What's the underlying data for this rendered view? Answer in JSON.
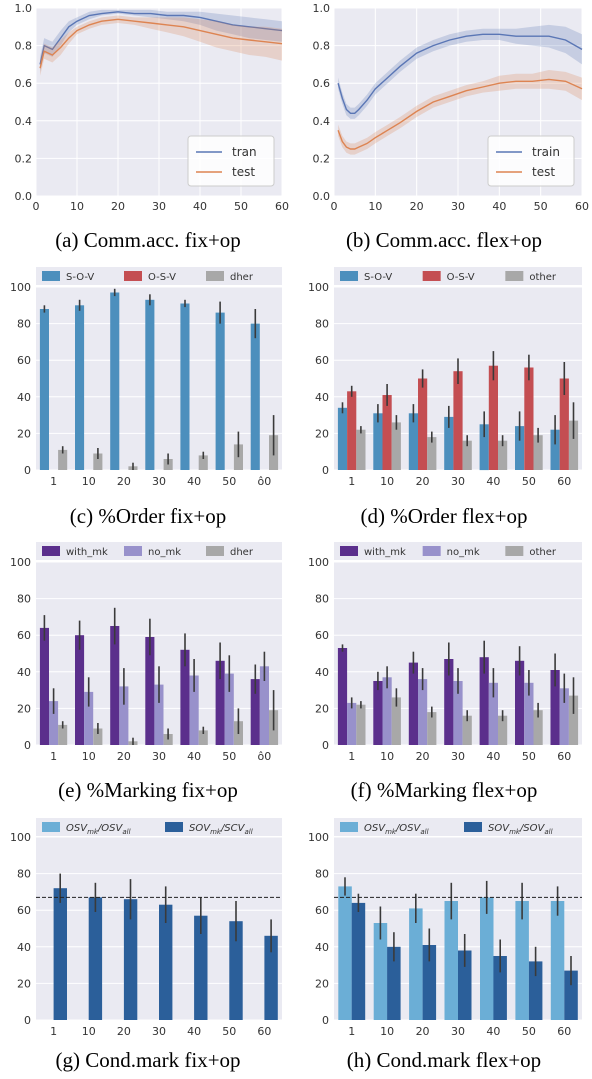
{
  "captions": {
    "a": "(a) Comm.acc. fix+op",
    "b": "(b) Comm.acc. flex+op",
    "c": "(c) %Order fix+op",
    "d": "(d) %Order flex+op",
    "e": "(e) %Marking fix+op",
    "f": "(f) %Marking flex+op",
    "g": "(g) Cond.mark fix+op",
    "h": "(h) Cond.mark flex+op"
  },
  "colors": {
    "panel_bg": "#eaeaf2",
    "train_line": "#5a76b5",
    "test_line": "#dd8452",
    "sov": "#4c8fbd",
    "osv": "#c44e52",
    "other": "#a8a8a8",
    "with_mk": "#5b2f8c",
    "no_mk": "#9891cb",
    "cond_osv": "#6baed6",
    "cond_sov": "#2b5f9a"
  },
  "chart_data": [
    {
      "id": "a",
      "type": "line",
      "xlim": [
        0,
        60
      ],
      "ylim": [
        0,
        1.0
      ],
      "xticks": [
        0,
        10,
        20,
        30,
        40,
        50,
        60
      ],
      "yticks": [
        0.0,
        0.2,
        0.4,
        0.6,
        0.8,
        1.0
      ],
      "ytick_labels": [
        "0.0",
        "0.2",
        "0.4",
        "0.6",
        "0.8",
        "1.0"
      ],
      "legend": "bottom-right",
      "x": [
        1,
        2,
        4,
        6,
        8,
        10,
        13,
        16,
        20,
        24,
        28,
        32,
        36,
        40,
        44,
        48,
        52,
        56,
        60
      ],
      "series": [
        {
          "name": "tran",
          "color_key": "train_line",
          "values": [
            0.7,
            0.8,
            0.78,
            0.84,
            0.9,
            0.93,
            0.96,
            0.97,
            0.98,
            0.97,
            0.97,
            0.96,
            0.96,
            0.95,
            0.93,
            0.91,
            0.9,
            0.89,
            0.88
          ],
          "lower": [
            0.66,
            0.76,
            0.74,
            0.8,
            0.87,
            0.91,
            0.94,
            0.96,
            0.97,
            0.96,
            0.95,
            0.94,
            0.93,
            0.91,
            0.88,
            0.86,
            0.84,
            0.83,
            0.82
          ],
          "upper": [
            0.74,
            0.84,
            0.82,
            0.88,
            0.93,
            0.95,
            0.98,
            0.99,
            0.99,
            0.99,
            0.99,
            0.98,
            0.98,
            0.98,
            0.97,
            0.96,
            0.95,
            0.94,
            0.93
          ]
        },
        {
          "name": "test",
          "color_key": "test_line",
          "values": [
            0.68,
            0.77,
            0.75,
            0.79,
            0.84,
            0.88,
            0.91,
            0.93,
            0.94,
            0.93,
            0.92,
            0.91,
            0.9,
            0.88,
            0.86,
            0.84,
            0.83,
            0.82,
            0.81
          ],
          "lower": [
            0.64,
            0.73,
            0.71,
            0.75,
            0.81,
            0.86,
            0.89,
            0.91,
            0.92,
            0.91,
            0.89,
            0.87,
            0.85,
            0.82,
            0.79,
            0.77,
            0.75,
            0.74,
            0.72
          ],
          "upper": [
            0.72,
            0.81,
            0.79,
            0.83,
            0.87,
            0.9,
            0.93,
            0.95,
            0.96,
            0.95,
            0.95,
            0.95,
            0.95,
            0.94,
            0.93,
            0.91,
            0.9,
            0.9,
            0.89
          ]
        }
      ]
    },
    {
      "id": "b",
      "type": "line",
      "xlim": [
        0,
        60
      ],
      "ylim": [
        0,
        1.0
      ],
      "xticks": [
        0,
        10,
        20,
        30,
        40,
        50,
        60
      ],
      "yticks": [
        0.0,
        0.2,
        0.4,
        0.6,
        0.8,
        1.0
      ],
      "ytick_labels": [
        "0.0",
        "0.2",
        "0.4",
        "0.6",
        "0.8",
        "1.0"
      ],
      "legend": "bottom-right",
      "x": [
        1,
        2,
        3,
        4,
        5,
        6,
        8,
        10,
        13,
        16,
        20,
        24,
        28,
        32,
        36,
        40,
        44,
        48,
        52,
        56,
        60
      ],
      "series": [
        {
          "name": "train",
          "color_key": "train_line",
          "values": [
            0.6,
            0.52,
            0.46,
            0.44,
            0.44,
            0.46,
            0.51,
            0.57,
            0.63,
            0.69,
            0.76,
            0.8,
            0.83,
            0.85,
            0.86,
            0.86,
            0.85,
            0.85,
            0.85,
            0.83,
            0.78
          ],
          "lower": [
            0.57,
            0.49,
            0.43,
            0.41,
            0.41,
            0.43,
            0.48,
            0.54,
            0.6,
            0.66,
            0.73,
            0.77,
            0.8,
            0.82,
            0.83,
            0.83,
            0.81,
            0.8,
            0.79,
            0.76,
            0.7
          ],
          "upper": [
            0.63,
            0.55,
            0.49,
            0.47,
            0.47,
            0.49,
            0.54,
            0.6,
            0.66,
            0.72,
            0.79,
            0.83,
            0.86,
            0.88,
            0.89,
            0.89,
            0.89,
            0.9,
            0.91,
            0.9,
            0.86
          ]
        },
        {
          "name": "test",
          "color_key": "test_line",
          "values": [
            0.35,
            0.29,
            0.26,
            0.25,
            0.25,
            0.26,
            0.28,
            0.31,
            0.35,
            0.39,
            0.45,
            0.5,
            0.53,
            0.56,
            0.58,
            0.6,
            0.61,
            0.61,
            0.62,
            0.61,
            0.57
          ],
          "lower": [
            0.32,
            0.26,
            0.23,
            0.22,
            0.22,
            0.23,
            0.25,
            0.28,
            0.32,
            0.36,
            0.42,
            0.47,
            0.5,
            0.53,
            0.55,
            0.56,
            0.57,
            0.57,
            0.57,
            0.56,
            0.51
          ],
          "upper": [
            0.38,
            0.32,
            0.29,
            0.28,
            0.28,
            0.29,
            0.31,
            0.34,
            0.38,
            0.42,
            0.48,
            0.53,
            0.56,
            0.59,
            0.61,
            0.64,
            0.65,
            0.65,
            0.67,
            0.66,
            0.63
          ]
        }
      ]
    },
    {
      "id": "c",
      "type": "bar",
      "ylim": [
        0,
        100
      ],
      "yticks": [
        0,
        20,
        40,
        60,
        80,
        100
      ],
      "categories": [
        "1",
        "10",
        "20",
        "30",
        "40",
        "50",
        "60"
      ],
      "category_labels": [
        "1",
        "10",
        "20",
        "30",
        "40",
        "50",
        "ô0"
      ],
      "legend": "top",
      "series": [
        {
          "name": "S-O-V",
          "color_key": "sov",
          "values": [
            88,
            90,
            97,
            93,
            91,
            86,
            80
          ],
          "err": [
            2,
            3,
            2,
            3,
            2,
            6,
            8
          ]
        },
        {
          "name": "O-S-V",
          "color_key": "osv",
          "values": [
            0,
            0,
            0,
            0,
            0,
            0,
            0
          ],
          "err": [
            0,
            0,
            0,
            0,
            0,
            0,
            0
          ]
        },
        {
          "name": "dher",
          "color_key": "other",
          "values": [
            11,
            9,
            2,
            6,
            8,
            14,
            19
          ],
          "err": [
            2,
            3,
            2,
            3,
            2,
            7,
            11
          ]
        }
      ]
    },
    {
      "id": "d",
      "type": "bar",
      "ylim": [
        0,
        100
      ],
      "yticks": [
        0,
        20,
        40,
        60,
        80,
        100
      ],
      "categories": [
        "1",
        "10",
        "20",
        "30",
        "40",
        "50",
        "60"
      ],
      "legend": "top",
      "series": [
        {
          "name": "S-O-V",
          "color_key": "sov",
          "values": [
            34,
            31,
            31,
            29,
            25,
            24,
            22
          ],
          "err": [
            3,
            5,
            5,
            6,
            7,
            8,
            8
          ]
        },
        {
          "name": "O-S-V",
          "color_key": "osv",
          "values": [
            43,
            41,
            50,
            54,
            57,
            56,
            50
          ],
          "err": [
            3,
            6,
            5,
            7,
            8,
            7,
            9
          ]
        },
        {
          "name": "other",
          "color_key": "other",
          "values": [
            22,
            26,
            18,
            16,
            16,
            19,
            27
          ],
          "err": [
            2,
            4,
            3,
            3,
            3,
            4,
            10
          ]
        }
      ]
    },
    {
      "id": "e",
      "type": "bar",
      "ylim": [
        0,
        100
      ],
      "yticks": [
        0,
        20,
        40,
        60,
        80,
        100
      ],
      "categories": [
        "1",
        "10",
        "20",
        "30",
        "40",
        "50",
        "60"
      ],
      "category_labels": [
        "1",
        "10",
        "20",
        "30",
        "40",
        "50",
        "ô0"
      ],
      "legend": "top",
      "series": [
        {
          "name": "with_mk",
          "color_key": "with_mk",
          "values": [
            64,
            60,
            65,
            59,
            52,
            46,
            36
          ],
          "err": [
            7,
            8,
            10,
            10,
            9,
            10,
            8
          ]
        },
        {
          "name": "no_mk",
          "color_key": "no_mk",
          "values": [
            24,
            29,
            32,
            33,
            38,
            39,
            43
          ],
          "err": [
            7,
            8,
            10,
            10,
            9,
            10,
            8
          ]
        },
        {
          "name": "dher",
          "color_key": "other",
          "values": [
            11,
            9,
            2,
            6,
            8,
            13,
            19
          ],
          "err": [
            2,
            3,
            2,
            3,
            2,
            7,
            11
          ]
        }
      ]
    },
    {
      "id": "f",
      "type": "bar",
      "ylim": [
        0,
        100
      ],
      "yticks": [
        0,
        20,
        40,
        60,
        80,
        100
      ],
      "categories": [
        "1",
        "10",
        "20",
        "30",
        "40",
        "50",
        "60"
      ],
      "legend": "top",
      "series": [
        {
          "name": "with_mk",
          "color_key": "with_mk",
          "values": [
            53,
            35,
            45,
            47,
            48,
            46,
            41
          ],
          "err": [
            2,
            5,
            6,
            9,
            9,
            8,
            9
          ]
        },
        {
          "name": "no_mk",
          "color_key": "no_mk",
          "values": [
            23,
            37,
            36,
            35,
            34,
            34,
            31
          ],
          "err": [
            3,
            6,
            6,
            7,
            8,
            7,
            8
          ]
        },
        {
          "name": "other",
          "color_key": "other",
          "values": [
            22,
            26,
            18,
            16,
            16,
            19,
            27
          ],
          "err": [
            2,
            5,
            3,
            3,
            3,
            4,
            10
          ]
        }
      ]
    },
    {
      "id": "g",
      "type": "bar",
      "ylim": [
        0,
        100
      ],
      "yticks": [
        0,
        20,
        40,
        60,
        80,
        100
      ],
      "categories": [
        "1",
        "10",
        "20",
        "30",
        "40",
        "50",
        "60"
      ],
      "legend": "top",
      "reference_line": 67,
      "series": [
        {
          "name": "OSV_mk/OSV_all",
          "color_key": "cond_osv",
          "values": [
            0,
            0,
            0,
            0,
            0,
            0,
            0
          ],
          "err": [
            0,
            0,
            0,
            0,
            0,
            0,
            0
          ]
        },
        {
          "name": "SOV_mk/SCV_all",
          "color_key": "cond_sov",
          "values": [
            72,
            67,
            66,
            63,
            57,
            54,
            46
          ],
          "err": [
            8,
            8,
            11,
            10,
            10,
            11,
            9
          ]
        }
      ]
    },
    {
      "id": "h",
      "type": "bar",
      "ylim": [
        0,
        100
      ],
      "yticks": [
        0,
        20,
        40,
        60,
        80,
        100
      ],
      "categories": [
        "1",
        "10",
        "20",
        "30",
        "40",
        "50",
        "60"
      ],
      "legend": "top",
      "reference_line": 67,
      "series": [
        {
          "name": "OSV_mk/OSV_all",
          "color_key": "cond_osv",
          "values": [
            73,
            53,
            61,
            65,
            67,
            65,
            65
          ],
          "err": [
            5,
            9,
            8,
            10,
            9,
            10,
            8
          ]
        },
        {
          "name": "SOV_mk/SOV_all",
          "color_key": "cond_sov",
          "values": [
            64,
            40,
            41,
            38,
            35,
            32,
            27
          ],
          "err": [
            5,
            8,
            9,
            9,
            9,
            8,
            8
          ]
        }
      ]
    }
  ]
}
